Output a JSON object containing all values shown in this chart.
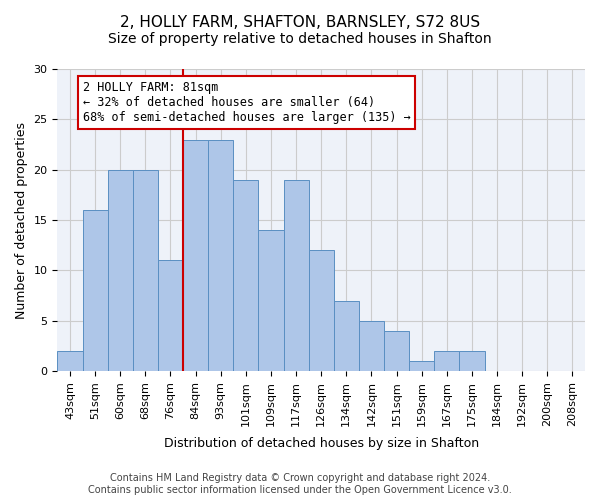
{
  "title1": "2, HOLLY FARM, SHAFTON, BARNSLEY, S72 8US",
  "title2": "Size of property relative to detached houses in Shafton",
  "xlabel": "Distribution of detached houses by size in Shafton",
  "ylabel": "Number of detached properties",
  "categories": [
    "43sqm",
    "51sqm",
    "60sqm",
    "68sqm",
    "76sqm",
    "84sqm",
    "93sqm",
    "101sqm",
    "109sqm",
    "117sqm",
    "126sqm",
    "134sqm",
    "142sqm",
    "151sqm",
    "159sqm",
    "167sqm",
    "175sqm",
    "184sqm",
    "192sqm",
    "200sqm",
    "208sqm"
  ],
  "values": [
    2,
    16,
    20,
    20,
    11,
    23,
    23,
    19,
    14,
    19,
    12,
    7,
    5,
    4,
    1,
    2,
    2,
    0,
    0,
    0,
    0
  ],
  "bar_color": "#aec6e8",
  "bar_edge_color": "#5a8fc2",
  "vline_color": "#cc0000",
  "annotation_text": "2 HOLLY FARM: 81sqm\n← 32% of detached houses are smaller (64)\n68% of semi-detached houses are larger (135) →",
  "annotation_box_color": "#ffffff",
  "annotation_box_edge_color": "#cc0000",
  "ylim": [
    0,
    30
  ],
  "yticks": [
    0,
    5,
    10,
    15,
    20,
    25,
    30
  ],
  "grid_color": "#cccccc",
  "background_color": "#eef2f9",
  "footer_text": "Contains HM Land Registry data © Crown copyright and database right 2024.\nContains public sector information licensed under the Open Government Licence v3.0.",
  "title1_fontsize": 11,
  "title2_fontsize": 10,
  "xlabel_fontsize": 9,
  "ylabel_fontsize": 9,
  "tick_fontsize": 8,
  "annotation_fontsize": 8.5,
  "footer_fontsize": 7
}
